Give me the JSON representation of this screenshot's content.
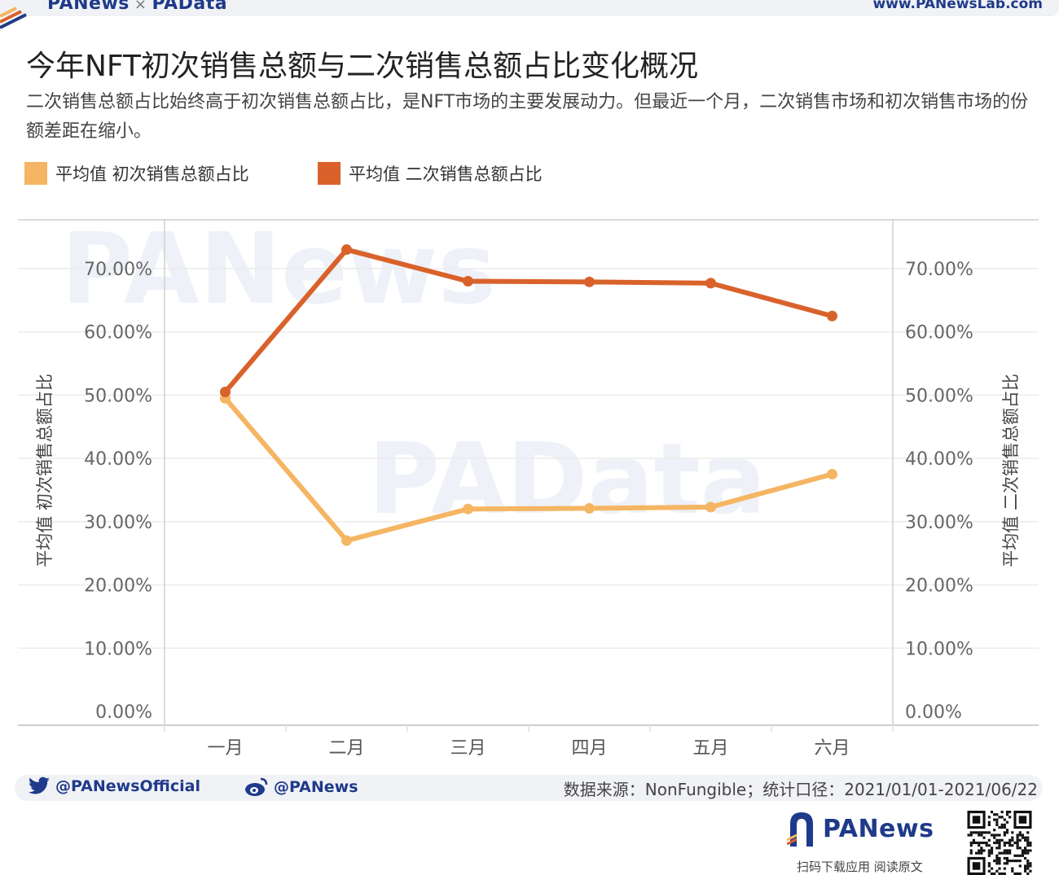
{
  "header": {
    "brand": "PANews",
    "brand_sep": "×",
    "brand2": "PAData",
    "url": "www.PANewsLab.com"
  },
  "title": "今年NFT初次销售总额与二次销售总额占比变化概况",
  "subtitle": "二次销售总额占比始终高于初次销售总额占比，是NFT市场的主要发展动力。但最近一个月，二次销售市场和初次销售市场的份额差距在缩小。",
  "legend": [
    {
      "label": "平均值 初次销售总额占比",
      "color": "#f5b562"
    },
    {
      "label": "平均值 二次销售总额占比",
      "color": "#d9622b"
    }
  ],
  "chart_data": {
    "type": "line",
    "categories": [
      "一月",
      "二月",
      "三月",
      "四月",
      "五月",
      "六月"
    ],
    "series": [
      {
        "name": "平均值 初次销售总额占比",
        "color": "#f5b562",
        "axis": "left",
        "values": [
          49.5,
          27.0,
          32.0,
          32.1,
          32.3,
          37.5
        ]
      },
      {
        "name": "平均值 二次销售总额占比",
        "color": "#d9622b",
        "axis": "right",
        "values": [
          50.5,
          73.0,
          68.0,
          67.9,
          67.7,
          62.5
        ]
      }
    ],
    "ylabel_left": "平均值 初次销售总额占比",
    "ylabel_right": "平均值 二次销售总额占比",
    "ylim": [
      0,
      75
    ],
    "yticks": [
      0,
      10,
      20,
      30,
      40,
      50,
      60,
      70
    ],
    "ytick_labels": [
      "0.00%",
      "10.00%",
      "20.00%",
      "30.00%",
      "40.00%",
      "50.00%",
      "60.00%",
      "70.00%"
    ],
    "grid": true,
    "legend_position": "top-left"
  },
  "watermarks": [
    "PANews",
    "PAData"
  ],
  "footer": {
    "twitter_icon": "twitter-icon",
    "twitter": "@PANewsOfficial",
    "weibo_icon": "weibo-icon",
    "weibo": "@PANews",
    "source": "数据来源：NonFungible；统计口径：2021/01/01-2021/06/22",
    "logo": "PANews",
    "scan": "扫码下载应用 阅读原文"
  }
}
